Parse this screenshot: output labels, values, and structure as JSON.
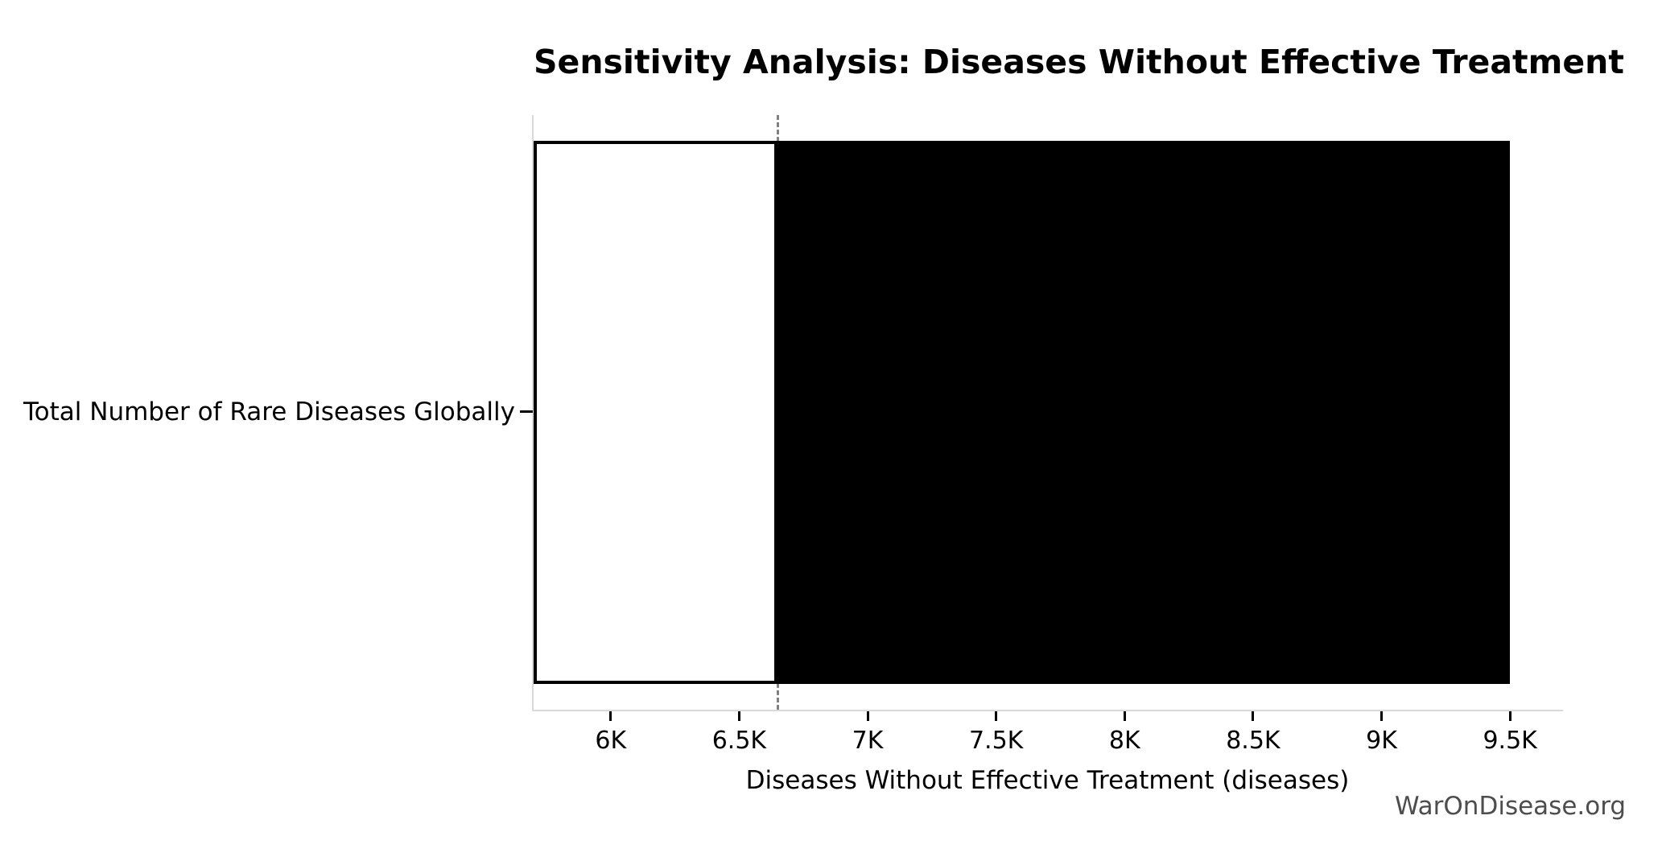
{
  "title": "Sensitivity Analysis: Diseases Without Effective Treatment",
  "watermark": "WarOnDisease.org",
  "y_axis": {
    "category_label": "Total Number of Rare Diseases Globally"
  },
  "x_axis": {
    "label": "Diseases Without Effective Treatment (diseases)"
  },
  "chart_data": {
    "type": "bar",
    "orientation": "horizontal",
    "subtype": "tornado_sensitivity",
    "title": "Sensitivity Analysis: Diseases Without Effective Treatment",
    "xlabel": "Diseases Without Effective Treatment (diseases)",
    "ylabel": "",
    "categories": [
      "Total Number of Rare Diseases Globally"
    ],
    "baseline": 6650,
    "low": 5700,
    "high": 9500,
    "series": [
      {
        "name": "low_side",
        "range": [
          5700,
          6650
        ],
        "fill": "#ffffff",
        "border": "#000000"
      },
      {
        "name": "high_side",
        "range": [
          6650,
          9500
        ],
        "fill": "#000000",
        "border": "#000000"
      }
    ],
    "xlim": [
      5700,
      9700
    ],
    "xticks": [
      {
        "value": 6000,
        "label": "6K"
      },
      {
        "value": 6500,
        "label": "6.5K"
      },
      {
        "value": 7000,
        "label": "7K"
      },
      {
        "value": 7500,
        "label": "7.5K"
      },
      {
        "value": 8000,
        "label": "8K"
      },
      {
        "value": 8500,
        "label": "8.5K"
      },
      {
        "value": 9000,
        "label": "9K"
      },
      {
        "value": 9500,
        "label": "9.5K"
      }
    ],
    "grid": false,
    "legend_position": "none",
    "colors": {
      "low_bar_fill": "#ffffff",
      "low_bar_border": "#000000",
      "high_bar_fill": "#000000",
      "baseline_line": "#808080",
      "spine": "#d9d9d9",
      "text": "#000000",
      "watermark": "#4d4d4d"
    }
  }
}
